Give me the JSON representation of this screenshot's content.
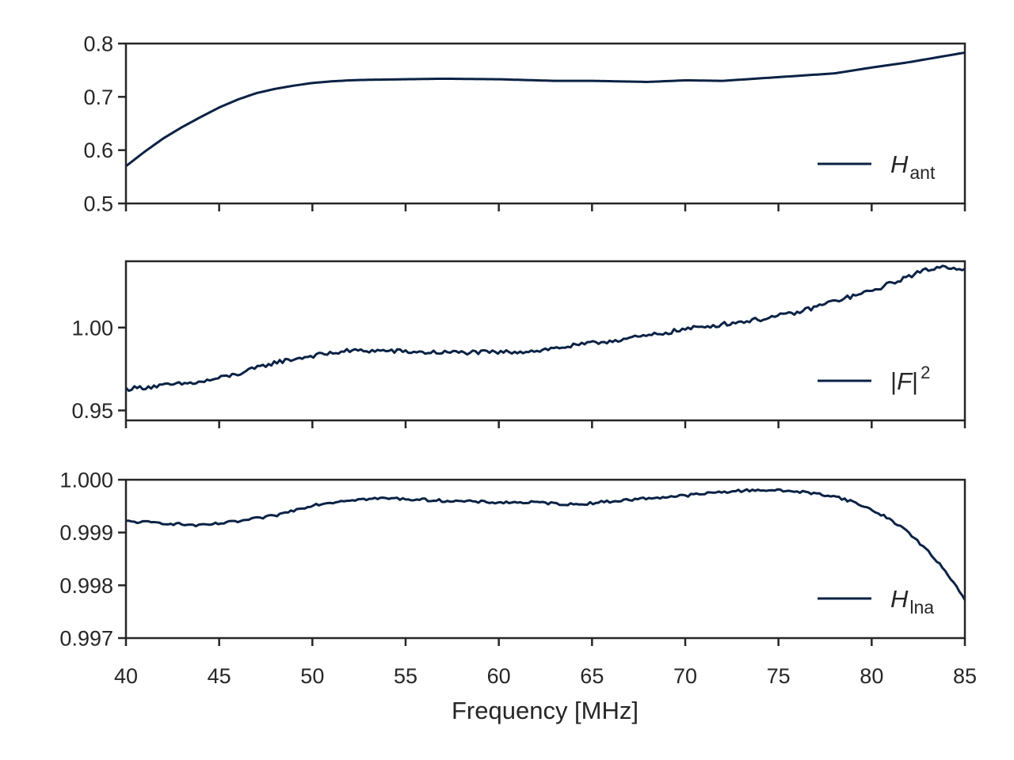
{
  "colors": {
    "line": "#0a2245",
    "axes": "#262626",
    "background": "#ffffff"
  },
  "chart_data": {
    "type": "line",
    "shared_xlabel": "Frequency [MHz]",
    "xlim": [
      40,
      85
    ],
    "xticks": [
      40,
      45,
      50,
      55,
      60,
      65,
      70,
      75,
      80,
      85
    ],
    "xtick_labels": [
      "40",
      "45",
      "50",
      "55",
      "60",
      "65",
      "70",
      "75",
      "80",
      "85"
    ],
    "legend_position": "lower-right",
    "panels": [
      {
        "id": "ant",
        "legend": {
          "base": "H",
          "sub": "ant",
          "sup": "",
          "bars": false
        },
        "ylim": [
          0.5,
          0.8
        ],
        "yticks": [
          0.5,
          0.6,
          0.7,
          0.8
        ],
        "ytick_labels": [
          "0.5",
          "0.6",
          "0.7",
          "0.8"
        ],
        "noise": 0,
        "series": {
          "x": [
            40,
            41,
            42,
            43,
            44,
            45,
            46,
            47,
            48,
            49,
            50,
            51,
            52,
            53,
            55,
            57,
            60,
            63,
            65,
            68,
            70,
            72,
            75,
            78,
            80,
            82,
            85
          ],
          "y": [
            0.57,
            0.597,
            0.622,
            0.643,
            0.662,
            0.68,
            0.695,
            0.707,
            0.715,
            0.721,
            0.726,
            0.729,
            0.731,
            0.732,
            0.733,
            0.734,
            0.733,
            0.73,
            0.73,
            0.728,
            0.731,
            0.73,
            0.737,
            0.744,
            0.755,
            0.765,
            0.783
          ]
        }
      },
      {
        "id": "f2",
        "legend": {
          "base": "|F|",
          "sub": "",
          "sup": "2",
          "bars": true
        },
        "ylim": [
          0.944,
          1.04
        ],
        "yticks": [
          0.95,
          1.0
        ],
        "ytick_labels": [
          "0.95",
          "1.00"
        ],
        "noise": 0.0013,
        "series": {
          "x": [
            40,
            42,
            44,
            46,
            48,
            50,
            52,
            54,
            56,
            58,
            60,
            62,
            64,
            66,
            68,
            70,
            72,
            74,
            76,
            78,
            80,
            82,
            83,
            84,
            85
          ],
          "y": [
            0.963,
            0.965,
            0.967,
            0.972,
            0.979,
            0.983,
            0.986,
            0.986,
            0.985,
            0.985,
            0.985,
            0.986,
            0.989,
            0.992,
            0.995,
            0.999,
            1.002,
            1.005,
            1.009,
            1.016,
            1.022,
            1.031,
            1.035,
            1.037,
            1.035
          ]
        }
      },
      {
        "id": "lna",
        "legend": {
          "base": "H",
          "sub": "lna",
          "sup": "",
          "bars": false
        },
        "ylim": [
          0.997,
          1.0
        ],
        "yticks": [
          0.997,
          0.998,
          0.999,
          1.0
        ],
        "ytick_labels": [
          "0.997",
          "0.998",
          "0.999",
          "1.000"
        ],
        "noise": 2.5e-05,
        "series": {
          "x": [
            40,
            42,
            44,
            46,
            48,
            50,
            52,
            54,
            56,
            58,
            60,
            62,
            64,
            66,
            68,
            70,
            72,
            74,
            76,
            78,
            79,
            80,
            81,
            82,
            83,
            84,
            85
          ],
          "y": [
            0.99921,
            0.99918,
            0.99913,
            0.99921,
            0.99932,
            0.99952,
            0.99962,
            0.99965,
            0.99962,
            0.99959,
            0.99957,
            0.99957,
            0.99953,
            0.99959,
            0.99965,
            0.9997,
            0.99977,
            0.99981,
            0.99978,
            0.99969,
            0.99958,
            0.99943,
            0.99925,
            0.999,
            0.99865,
            0.99825,
            0.99775
          ]
        }
      }
    ]
  }
}
